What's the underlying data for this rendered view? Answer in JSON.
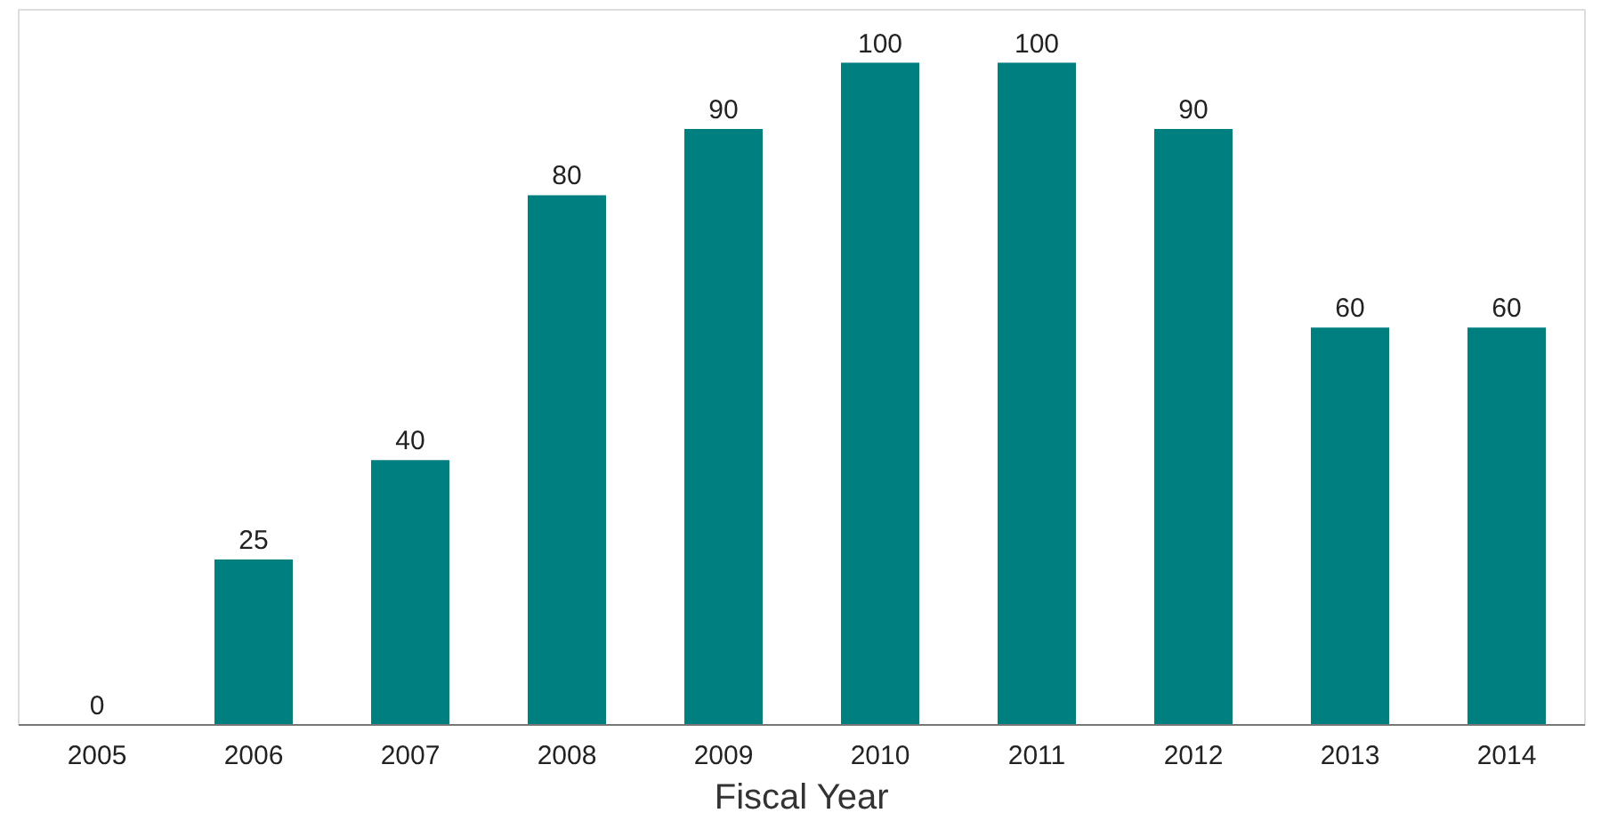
{
  "chart_data": {
    "type": "bar",
    "xlabel": "Fiscal Year",
    "categories": [
      "2005",
      "2006",
      "2007",
      "2008",
      "2009",
      "2010",
      "2011",
      "2012",
      "2013",
      "2014"
    ],
    "values": [
      0,
      25,
      40,
      80,
      90,
      100,
      100,
      90,
      60,
      60
    ],
    "color": "#007f80",
    "data_labels": true,
    "grid": false,
    "tick_labels": "x"
  }
}
